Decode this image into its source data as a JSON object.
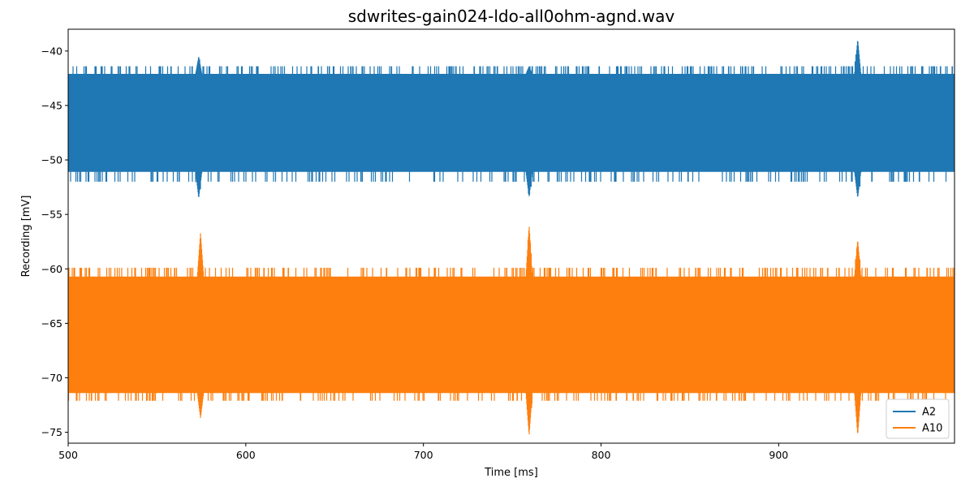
{
  "chart_data": {
    "type": "line",
    "title": "sdwrites-gain024-ldo-all0ohm-agnd.wav",
    "xlabel": "Time [ms]",
    "ylabel": "Recording [mV]",
    "xlim": [
      500,
      999
    ],
    "ylim": [
      -76,
      -38
    ],
    "xticks": [
      500,
      600,
      700,
      800,
      900
    ],
    "xtick_labels": [
      "500",
      "600",
      "700",
      "800",
      "900"
    ],
    "yticks": [
      -40,
      -45,
      -50,
      -55,
      -60,
      -65,
      -70,
      -75
    ],
    "ytick_labels": [
      "−40",
      "−45",
      "−50",
      "−55",
      "−60",
      "−65",
      "−70",
      "−75"
    ],
    "grid": false,
    "legend_position": "lower right",
    "series": [
      {
        "name": "A2",
        "color": "#1f77b4",
        "band": [
          -51.1,
          -42.1
        ],
        "occasional_extremes": [
          -52.0,
          -41.4
        ],
        "spikes": [
          {
            "x": 573.5,
            "min": -53.5,
            "max": -40.5
          },
          {
            "x": 759.5,
            "min": -53.4,
            "max": -41.4
          },
          {
            "x": 944.5,
            "min": -53.5,
            "max": -38.9
          }
        ]
      },
      {
        "name": "A10",
        "color": "#ff7f0e",
        "band": [
          -71.4,
          -60.7
        ],
        "occasional_extremes": [
          -72.1,
          -59.9
        ],
        "spikes": [
          {
            "x": 574.5,
            "min": -73.7,
            "max": -56.7
          },
          {
            "x": 759.5,
            "min": -75.3,
            "max": -56.0
          },
          {
            "x": 944.5,
            "min": -75.3,
            "max": -57.3
          }
        ]
      }
    ]
  }
}
